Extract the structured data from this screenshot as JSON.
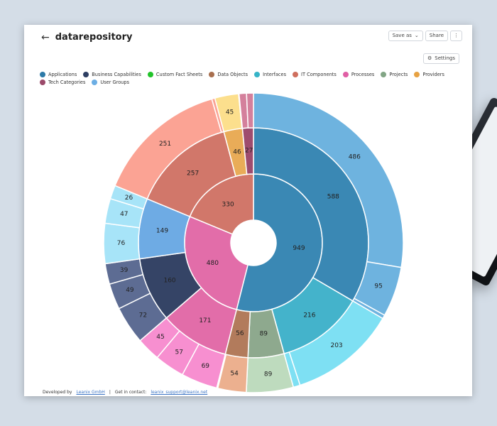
{
  "page": {
    "title": "datarepository",
    "back_icon": "arrow-left-icon",
    "buttons": {
      "save": "Save as",
      "share": "Share",
      "more": "⋮",
      "settings": "Settings",
      "settings_icon": "gear-icon"
    },
    "footer": {
      "developed": "Developed by",
      "company": "Leanix GmbH",
      "sep": "|",
      "contact": "Get in contact:",
      "email": "leanix_support@leanix.net"
    }
  },
  "chart_data": {
    "type": "sunburst",
    "legend": [
      {
        "name": "Applications",
        "color": "#2d7aa8"
      },
      {
        "name": "Business Capabilities",
        "color": "#2d3e62"
      },
      {
        "name": "Custom Fact Sheets",
        "color": "#22c32a"
      },
      {
        "name": "Data Objects",
        "color": "#a86f4e"
      },
      {
        "name": "Interfaces",
        "color": "#37b4c8"
      },
      {
        "name": "IT Components",
        "color": "#cf6f5e"
      },
      {
        "name": "Processes",
        "color": "#e05fa5"
      },
      {
        "name": "Projects",
        "color": "#82a585"
      },
      {
        "name": "Providers",
        "color": "#e7a243"
      },
      {
        "name": "Tech Categories",
        "color": "#9b4a6a"
      },
      {
        "name": "User Groups",
        "color": "#6caee4"
      }
    ],
    "inner": [
      {
        "name": "Applications",
        "value": 949,
        "label": "949",
        "color": "#3a88b4"
      },
      {
        "name": "Processes",
        "value": 480,
        "label": "480",
        "color": "#e26da9"
      },
      {
        "name": "IT Components",
        "value": 330,
        "label": "330",
        "color": "#d1776a"
      }
    ],
    "middle": [
      {
        "value": 588,
        "label": "588",
        "color": "#3a88b4"
      },
      {
        "value": 216,
        "label": "216",
        "color": "#44b3cb"
      },
      {
        "value": 89,
        "label": "89",
        "color": "#8ea98e"
      },
      {
        "value": 56,
        "label": "56",
        "color": "#b27b5c"
      },
      {
        "value": 171,
        "label": "171",
        "color": "#e26da9"
      },
      {
        "value": 160,
        "label": "160",
        "color": "#354466"
      },
      {
        "value": 149,
        "label": "149",
        "color": "#6eabe4"
      },
      {
        "value": 257,
        "label": "257",
        "color": "#d1776a"
      },
      {
        "value": 46,
        "label": "46",
        "color": "#e9ac58"
      },
      {
        "value": 27,
        "label": "27",
        "color": "#9e4c6e"
      }
    ],
    "outer": [
      {
        "value": 486,
        "label": "486",
        "color": "#6eb3df"
      },
      {
        "value": 95,
        "label": "95",
        "color": "#6eb3df"
      },
      {
        "value": 7,
        "label": "",
        "color": "#6eb3df"
      },
      {
        "value": 203,
        "label": "203",
        "color": "#7ee0f3"
      },
      {
        "value": 13,
        "label": "",
        "color": "#7ee0f3"
      },
      {
        "value": 89,
        "label": "89",
        "color": "#bedbbe"
      },
      {
        "value": 54,
        "label": "54",
        "color": "#ecb08f"
      },
      {
        "value": 2,
        "label": "",
        "color": "#ecb08f"
      },
      {
        "value": 69,
        "label": "69",
        "color": "#f78fd0"
      },
      {
        "value": 57,
        "label": "57",
        "color": "#f78fd0"
      },
      {
        "value": 45,
        "label": "45",
        "color": "#f78fd0"
      },
      {
        "value": 72,
        "label": "72",
        "color": "#5d6c93"
      },
      {
        "value": 49,
        "label": "49",
        "color": "#5d6c93"
      },
      {
        "value": 39,
        "label": "39",
        "color": "#5d6c93"
      },
      {
        "value": 76,
        "label": "76",
        "color": "#a7e4f8"
      },
      {
        "value": 47,
        "label": "47",
        "color": "#a7e4f8"
      },
      {
        "value": 26,
        "label": "26",
        "color": "#a7e4f8"
      },
      {
        "value": 251,
        "label": "251",
        "color": "#fba394"
      },
      {
        "value": 6,
        "label": "",
        "color": "#fba394"
      },
      {
        "value": 45,
        "label": "45",
        "color": "#fcdf8d"
      },
      {
        "value": 1,
        "label": "",
        "color": "#fcdf8d"
      },
      {
        "value": 14,
        "label": "",
        "color": "#d4809c"
      },
      {
        "value": 13,
        "label": "",
        "color": "#d4809c"
      }
    ]
  }
}
